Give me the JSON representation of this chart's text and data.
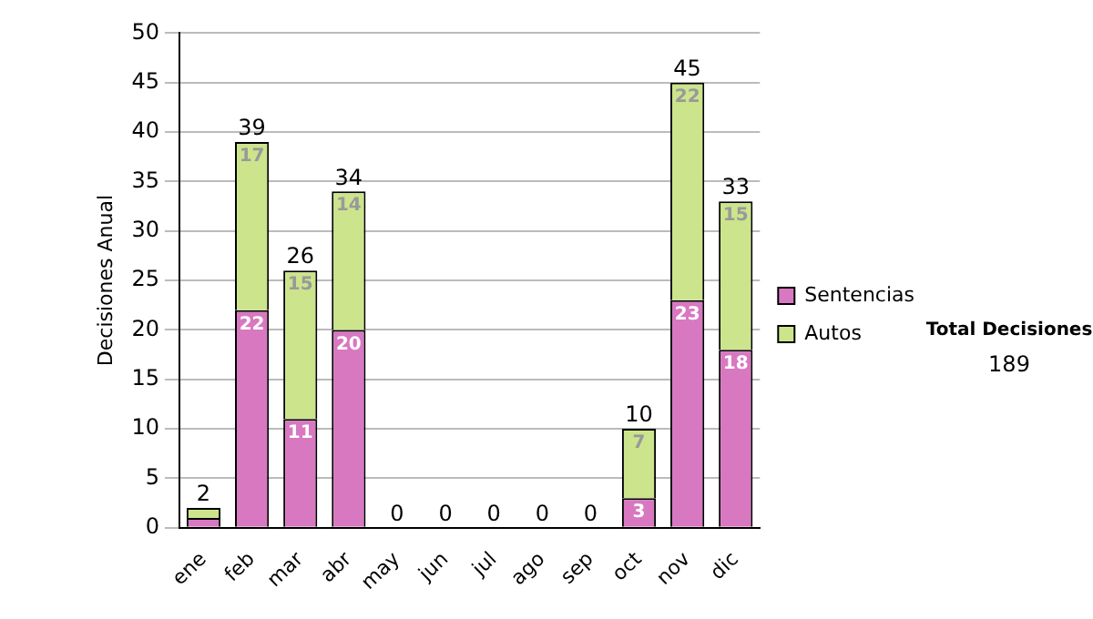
{
  "chart_data": {
    "type": "bar",
    "stacked": true,
    "ylabel": "Decisiones Anual",
    "categories": [
      "ene",
      "feb",
      "mar",
      "abr",
      "may",
      "jun",
      "jul",
      "ago",
      "sep",
      "oct",
      "nov",
      "dic"
    ],
    "series": [
      {
        "name": "Sentencias",
        "color": "#d878c0",
        "values": [
          1,
          22,
          11,
          20,
          0,
          0,
          0,
          0,
          0,
          3,
          23,
          18
        ],
        "value_labels": [
          null,
          "22",
          "11",
          "20",
          null,
          null,
          null,
          null,
          null,
          "3",
          "23",
          "18"
        ]
      },
      {
        "name": "Autos",
        "color": "#cce48c",
        "values": [
          1,
          17,
          15,
          14,
          0,
          0,
          0,
          0,
          0,
          7,
          22,
          15
        ],
        "value_labels": [
          null,
          "17",
          "15",
          "14",
          null,
          null,
          null,
          null,
          null,
          "7",
          "22",
          "15"
        ]
      }
    ],
    "totals": [
      "2",
      "39",
      "26",
      "34",
      "0",
      "0",
      "0",
      "0",
      "0",
      "10",
      "45",
      "33"
    ],
    "ylim": [
      0,
      50
    ],
    "yticks": [
      0,
      5,
      10,
      15,
      20,
      25,
      30,
      35,
      40,
      45,
      50
    ],
    "grid": "y",
    "legend": "right",
    "annotations": [
      "Total Decisiones",
      "189"
    ]
  }
}
